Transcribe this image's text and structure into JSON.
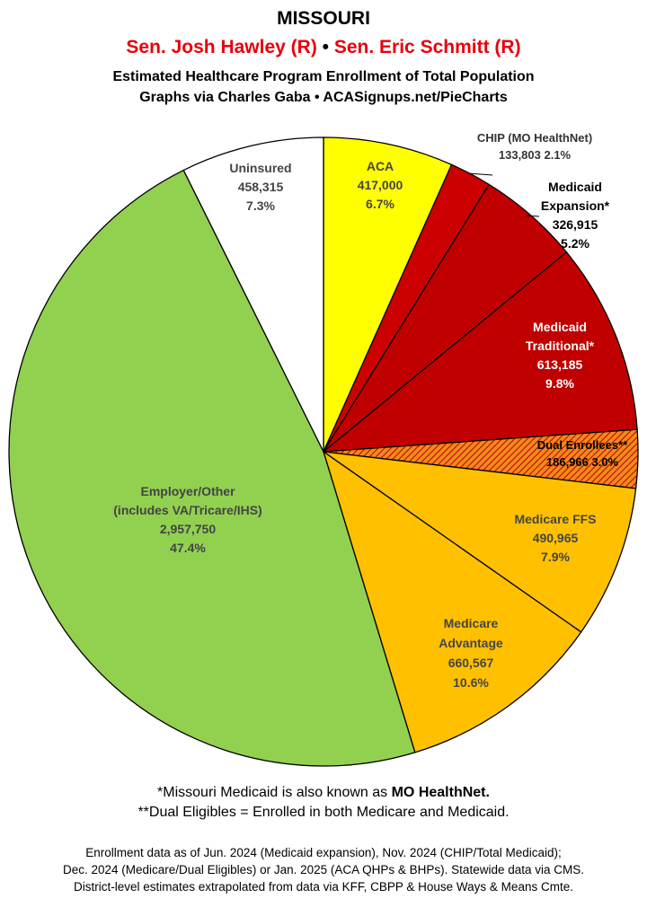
{
  "header": {
    "state": "MISSOURI",
    "senator1": "Sen. Josh Hawley (R)",
    "separator": "•",
    "senator2": "Sen. Eric Schmitt (R)",
    "subtitle": "Estimated Healthcare Program Enrollment of Total Population",
    "credit": "Graphs via Charles Gaba  •  ACASignups.net/PieCharts"
  },
  "chart_data": {
    "type": "pie",
    "slices": [
      {
        "label": [
          "ACA"
        ],
        "value": 417000,
        "value_text": "417,000",
        "percent": "6.7%",
        "color": "#ffff00",
        "text_color": "#444444"
      },
      {
        "label": [
          "CHIP (MO HealthNet)"
        ],
        "value": 133803,
        "value_text": "133,803",
        "percent": "2.1%",
        "color": "#cc0000",
        "text_color": "#333333"
      },
      {
        "label": [
          "Medicaid",
          "Expansion*"
        ],
        "value": 326915,
        "value_text": "326,915",
        "percent": "5.2%",
        "color": "#c00000",
        "text_color": "#000000"
      },
      {
        "label": [
          "Medicaid",
          "Traditional*"
        ],
        "value": 613185,
        "value_text": "613,185",
        "percent": "9.8%",
        "color": "#c00000",
        "text_color": "#ffffff"
      },
      {
        "label": [
          "Dual Enrollees**"
        ],
        "value": 186966,
        "value_text": "186,966",
        "percent": "3.0%",
        "color": "#f08a1c",
        "text_color": "#000000"
      },
      {
        "label": [
          "Medicare FFS"
        ],
        "value": 490965,
        "value_text": "490,965",
        "percent": "7.9%",
        "color": "#ffc000",
        "text_color": "#444444"
      },
      {
        "label": [
          "Medicare",
          "Advantage"
        ],
        "value": 660567,
        "value_text": "660,567",
        "percent": "10.6%",
        "color": "#ffc000",
        "text_color": "#444444"
      },
      {
        "label": [
          "Employer/Other",
          "(includes VA/Tricare/IHS)"
        ],
        "value": 2957750,
        "value_text": "2,957,750",
        "percent": "47.4%",
        "color": "#92d050",
        "text_color": "#444444"
      },
      {
        "label": [
          "Uninsured"
        ],
        "value": 458315,
        "value_text": "458,315",
        "percent": "7.3%",
        "color": "#ffffff",
        "text_color": "#444444"
      }
    ]
  },
  "notes": {
    "note1_prefix": "*Missouri Medicaid is also known as ",
    "note1_bold": "MO HealthNet.",
    "note2": "**Dual Eligibles = Enrolled in both Medicare and Medicaid."
  },
  "sources": {
    "line1": "Enrollment data as of Jun. 2024 (Medicaid expansion), Nov. 2024 (CHIP/Total Medicaid);",
    "line2": "Dec. 2024 (Medicare/Dual Eligibles) or Jan. 2025 (ACA QHPs & BHPs). Statewide data via CMS.",
    "line3": "District-level estimates extrapolated from data via KFF, CBPP & House Ways & Means Cmte."
  }
}
